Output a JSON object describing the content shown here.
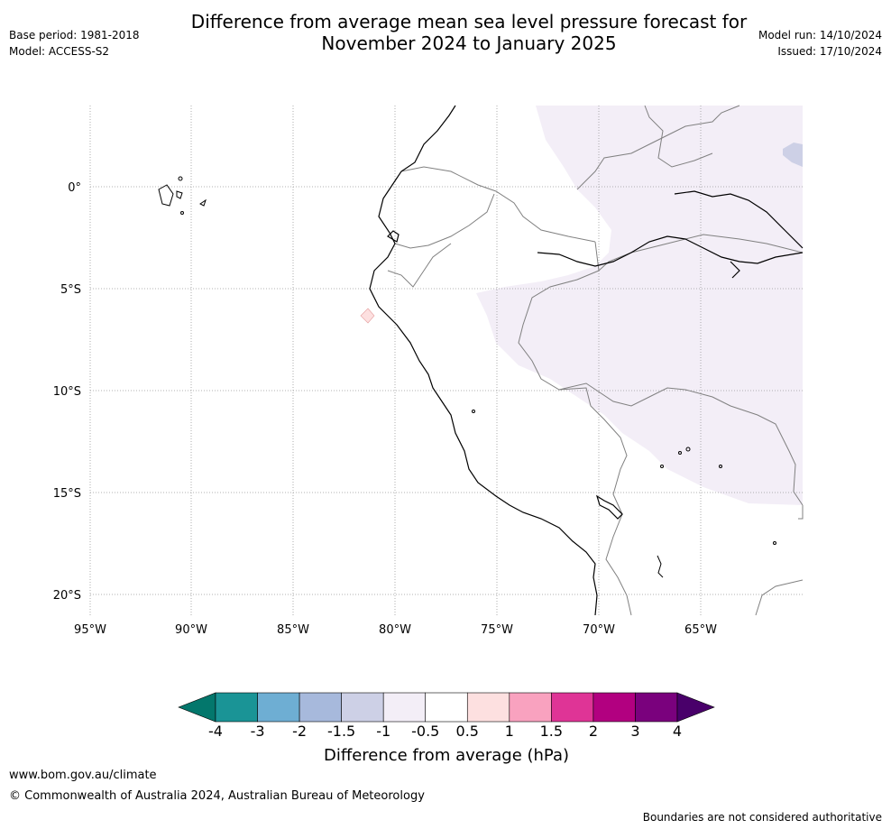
{
  "header": {
    "title_line1": "Difference from average mean sea level pressure forecast for",
    "title_line2": "November 2024 to January 2025",
    "base_period": "Base period: 1981-2018",
    "model": "Model: ACCESS-S2",
    "model_run": "Model run: 14/10/2024",
    "issued": "Issued: 17/10/2024"
  },
  "map": {
    "lat_labels": [
      "0°",
      "5°S",
      "10°S",
      "15°S",
      "20°S"
    ],
    "lon_labels": [
      "95°W",
      "90°W",
      "85°W",
      "80°W",
      "75°W",
      "70°W",
      "65°W"
    ],
    "anomaly_regions": [
      {
        "range": "-1.5 to -1",
        "color": "#cdd0e6"
      },
      {
        "range": "-1 to -0.5",
        "color": "#f3eef7"
      },
      {
        "range": "0.5 to 1",
        "color": "#fde0e0"
      }
    ]
  },
  "colorbar": {
    "title": "Difference from average (hPa)",
    "tick_labels": [
      "-4",
      "-3",
      "-2",
      "-1.5",
      "-1",
      "-0.5",
      "0.5",
      "1",
      "1.5",
      "2",
      "3",
      "4"
    ],
    "colors": [
      "#1a9496",
      "#6eaed3",
      "#a7b9dc",
      "#cdd0e6",
      "#f3eef7",
      "#ffffff",
      "#fde0e0",
      "#f9a2bf",
      "#df3496",
      "#b20080",
      "#7a017d"
    ],
    "low_extend_color": "#03776c",
    "high_extend_color": "#49006a"
  },
  "footer": {
    "url": "www.bom.gov.au/climate",
    "copyright": "© Commonwealth of Australia 2024, Australian Bureau of Meteorology",
    "disclaimer": "Boundaries are not considered authoritative"
  }
}
